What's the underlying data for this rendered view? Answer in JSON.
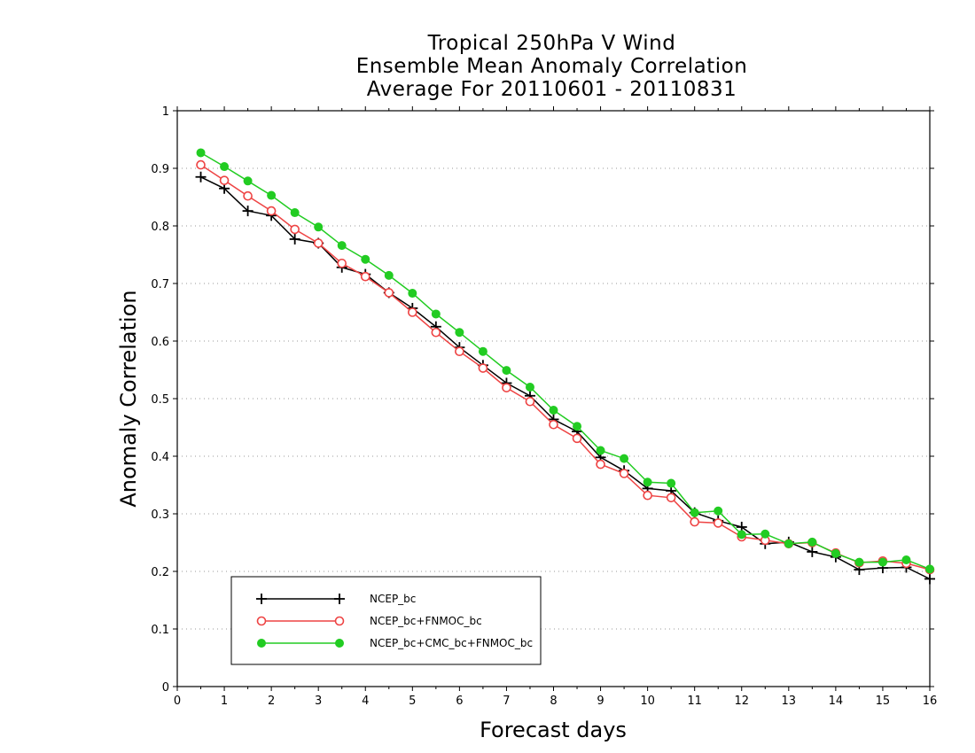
{
  "chart_data": {
    "type": "line",
    "title": [
      "Tropical 250hPa V Wind",
      "Ensemble Mean Anomaly Correlation",
      "Average For 20110601 - 20110831"
    ],
    "xlabel": "Forecast days",
    "ylabel": "Anomaly Correlation",
    "xlim": [
      0,
      16
    ],
    "ylim": [
      0,
      1
    ],
    "xticks": [
      "0",
      "1",
      "2",
      "3",
      "4",
      "5",
      "6",
      "7",
      "8",
      "9",
      "10",
      "11",
      "12",
      "13",
      "14",
      "15",
      "16"
    ],
    "yticks": [
      "0",
      "0.1",
      "0.2",
      "0.3",
      "0.4",
      "0.5",
      "0.6",
      "0.7",
      "0.8",
      "0.9",
      "1"
    ],
    "grid": true,
    "legend_position": "lower-left",
    "x": [
      0.5,
      1,
      1.5,
      2,
      2.5,
      3,
      3.5,
      4,
      4.5,
      5,
      5.5,
      6,
      6.5,
      7,
      7.5,
      8,
      8.5,
      9,
      9.5,
      10,
      10.5,
      11,
      11.5,
      12,
      12.5,
      13,
      13.5,
      14,
      14.5,
      15,
      15.5,
      16
    ],
    "series": [
      {
        "name": "NCEP_bc",
        "color": "#000000",
        "marker": "plus",
        "values": [
          0.885,
          0.865,
          0.826,
          0.818,
          0.777,
          0.77,
          0.728,
          0.716,
          0.684,
          0.657,
          0.625,
          0.589,
          0.558,
          0.527,
          0.505,
          0.464,
          0.443,
          0.398,
          0.375,
          0.344,
          0.34,
          0.302,
          0.288,
          0.277,
          0.248,
          0.251,
          0.234,
          0.225,
          0.203,
          0.206,
          0.207,
          0.187
        ]
      },
      {
        "name": "NCEP_bc+FNMOC_bc",
        "color": "#ee4444",
        "marker": "open-circle",
        "values": [
          0.906,
          0.879,
          0.852,
          0.826,
          0.794,
          0.77,
          0.735,
          0.712,
          0.684,
          0.65,
          0.615,
          0.582,
          0.553,
          0.519,
          0.495,
          0.455,
          0.431,
          0.386,
          0.37,
          0.332,
          0.328,
          0.286,
          0.284,
          0.26,
          0.254,
          0.248,
          0.25,
          0.232,
          0.215,
          0.218,
          0.214,
          0.203
        ]
      },
      {
        "name": "NCEP_bc+CMC_bc+FNMOC_bc",
        "color": "#22cc22",
        "marker": "filled-circle",
        "values": [
          0.927,
          0.903,
          0.878,
          0.853,
          0.823,
          0.798,
          0.766,
          0.742,
          0.714,
          0.683,
          0.647,
          0.615,
          0.582,
          0.549,
          0.52,
          0.48,
          0.452,
          0.41,
          0.396,
          0.355,
          0.353,
          0.302,
          0.305,
          0.264,
          0.265,
          0.248,
          0.251,
          0.231,
          0.216,
          0.216,
          0.22,
          0.204
        ]
      }
    ]
  }
}
